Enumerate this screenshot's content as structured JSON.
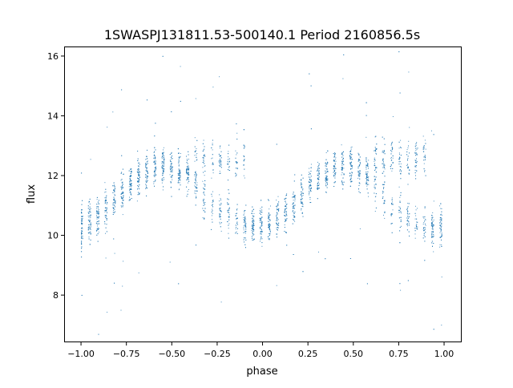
{
  "chart_data": {
    "type": "scatter",
    "title": "1SWASPJ131811.53-500140.1 Period 2160856.5s",
    "xlabel": "phase",
    "ylabel": "flux",
    "xlim": [
      -1.093,
      1.097
    ],
    "ylim": [
      6.42,
      16.32
    ],
    "xticks": [
      -1.0,
      -0.75,
      -0.5,
      -0.25,
      0.0,
      0.25,
      0.5,
      0.75,
      1.0
    ],
    "xtick_labels": [
      "−1.00",
      "−0.75",
      "−0.50",
      "−0.25",
      "0.00",
      "0.25",
      "0.50",
      "0.75",
      "1.00"
    ],
    "yticks": [
      8,
      10,
      12,
      14,
      16
    ],
    "ytick_labels": [
      "8",
      "10",
      "12",
      "14",
      "16"
    ],
    "grid": false,
    "marker_color": "#1f77b4",
    "binned_mean": {
      "phase": [
        -1.0,
        -0.9,
        -0.8,
        -0.7,
        -0.6,
        -0.5,
        -0.4,
        -0.3,
        -0.2,
        -0.1,
        0.0,
        0.1,
        0.2,
        0.3,
        0.4,
        0.5,
        0.6,
        0.7,
        0.8,
        0.9,
        1.0
      ],
      "flux": [
        10.3,
        10.7,
        11.3,
        11.9,
        12.3,
        12.3,
        12.0,
        11.0,
        10.6,
        10.3,
        10.3,
        10.7,
        11.3,
        11.9,
        12.3,
        12.3,
        12.0,
        11.0,
        10.6,
        10.3,
        10.3
      ]
    },
    "scatter_spread": 0.6,
    "n_points": 4000
  }
}
